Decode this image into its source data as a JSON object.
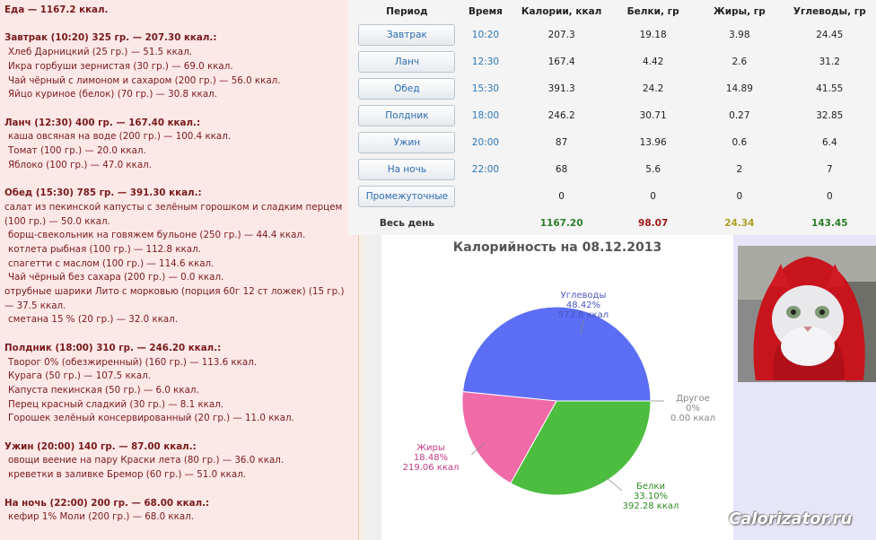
{
  "diary": {
    "lines": [
      {
        "t": "Еда — 1167.2 ккал.",
        "k": "hd"
      },
      {
        "t": "",
        "k": "gap"
      },
      {
        "t": "Завтрак (10:20) 325 гр. — 207.30 ккал.:",
        "k": "hd"
      },
      {
        "t": "Хлеб Дарницкий (25 гр.) — 51.5 ккал.",
        "k": "it"
      },
      {
        "t": "Икра горбуши зернистая (30 гр.) — 69.0 ккал.",
        "k": "it"
      },
      {
        "t": "Чай чёрный с лимоном и сахаром (200 гр.) — 56.0 ккал.",
        "k": "it"
      },
      {
        "t": "Яйцо куриное (белок) (70 гр.) — 30.8 ккал.",
        "k": "it"
      },
      {
        "t": "",
        "k": "gap"
      },
      {
        "t": "Ланч (12:30) 400 гр. — 167.40 ккал.:",
        "k": "hd"
      },
      {
        "t": "каша овсяная на воде (200 гр.) — 100.4 ккал.",
        "k": "it"
      },
      {
        "t": "Томат (100 гр.) — 20.0 ккал.",
        "k": "it"
      },
      {
        "t": "Яблоко (100 гр.) — 47.0 ккал.",
        "k": "it"
      },
      {
        "t": "",
        "k": "gap"
      },
      {
        "t": "Обед (15:30) 785 гр. — 391.30 ккал.:",
        "k": "hd"
      },
      {
        "t": "салат из пекинской капусты с зелёным горошком и сладким перцем (100 гр.) — 50.0 ккал.",
        "k": "wrap"
      },
      {
        "t": "борщ-свекольник на говяжем бульоне (250 гр.) — 44.4 ккал.",
        "k": "it"
      },
      {
        "t": "котлета рыбная (100 гр.) — 112.8 ккал.",
        "k": "it"
      },
      {
        "t": "спагетти с маслом (100 гр.) — 114.6 ккал.",
        "k": "it"
      },
      {
        "t": "Чай чёрный без сахара (200 гр.) — 0.0 ккал.",
        "k": "it"
      },
      {
        "t": "отрубные шарики Лито с морковью (порция 60г 12 ст ложек) (15 гр.) — 37.5 ккал.",
        "k": "wrap"
      },
      {
        "t": "сметана 15 % (20 гр.) — 32.0 ккал.",
        "k": "it"
      },
      {
        "t": "",
        "k": "gap"
      },
      {
        "t": "Полдник (18:00) 310 гр. — 246.20 ккал.:",
        "k": "hd"
      },
      {
        "t": "Творог 0% (обезжиренный) (160 гр.) — 113.6 ккал.",
        "k": "it"
      },
      {
        "t": "Курага (50 гр.) — 107.5 ккал.",
        "k": "it"
      },
      {
        "t": "Капуста пекинская (50 гр.) — 6.0 ккал.",
        "k": "it"
      },
      {
        "t": "Перец красный сладкий (30 гр.) — 8.1 ккал.",
        "k": "it"
      },
      {
        "t": "Горошек зелёный консервированный (20 гр.) — 11.0 ккал.",
        "k": "it"
      },
      {
        "t": "",
        "k": "gap"
      },
      {
        "t": "Ужин (20:00) 140 гр. — 87.00 ккал.:",
        "k": "hd"
      },
      {
        "t": "овощи веение на пару Краски лета (80 гр.) — 36.0 ккал.",
        "k": "it"
      },
      {
        "t": "креветки в заливке Бремор (60 гр.) — 51.0 ккал.",
        "k": "it"
      },
      {
        "t": "",
        "k": "gap"
      },
      {
        "t": "На ночь (22:00) 200 гр. — 68.00 ккал.:",
        "k": "hd"
      },
      {
        "t": "кефир 1% Моли (200 гр.) — 68.0 ккал.",
        "k": "it"
      }
    ]
  },
  "table": {
    "headers": [
      "Период",
      "Время",
      "Калории, ккал",
      "Белки, гр",
      "Жиры, гр",
      "Углеводы, гр"
    ],
    "rows": [
      {
        "period": "Завтрак",
        "time": "10:20",
        "cal": "207.3",
        "prot": "19.18",
        "fat": "3.98",
        "carb": "24.45"
      },
      {
        "period": "Ланч",
        "time": "12:30",
        "cal": "167.4",
        "prot": "4.42",
        "fat": "2.6",
        "carb": "31.2"
      },
      {
        "period": "Обед",
        "time": "15:30",
        "cal": "391.3",
        "prot": "24.2",
        "fat": "14.89",
        "carb": "41.55"
      },
      {
        "period": "Полдник",
        "time": "18:00",
        "cal": "246.2",
        "prot": "30.71",
        "fat": "0.27",
        "carb": "32.85"
      },
      {
        "period": "Ужин",
        "time": "20:00",
        "cal": "87",
        "prot": "13.96",
        "fat": "0.6",
        "carb": "6.4"
      },
      {
        "period": "На ночь",
        "time": "22:00",
        "cal": "68",
        "prot": "5.6",
        "fat": "2",
        "carb": "7"
      },
      {
        "period": "Промежуточные",
        "time": "",
        "cal": "0",
        "prot": "0",
        "fat": "0",
        "carb": "0"
      }
    ],
    "total": {
      "label": "Весь день",
      "cal": "1167.20",
      "prot": "98.07",
      "fat": "24.34",
      "carb": "143.45"
    }
  },
  "chart_data": {
    "type": "pie",
    "title": "Калорийность на 08.12.2013",
    "slices": [
      {
        "name": "Углеводы",
        "percent": "48.42%",
        "value_label": "573.8 ккал",
        "value": 573.8,
        "color": "#5b6ef5",
        "label_color": "#4a56c0"
      },
      {
        "name": "Белки",
        "percent": "33.10%",
        "value_label": "392.28 ккал",
        "value": 392.28,
        "color": "#4cbd3f",
        "label_color": "#2e8a24"
      },
      {
        "name": "Жиры",
        "percent": "18.48%",
        "value_label": "219.06 ккал",
        "value": 219.06,
        "color": "#f06aa8",
        "label_color": "#c23b86"
      },
      {
        "name": "Другое",
        "percent": "0%",
        "value_label": "0.00 ккал",
        "value": 0,
        "color": "#bbbbbb",
        "label_color": "#888888"
      }
    ]
  },
  "watermark": "Calorizator.ru"
}
